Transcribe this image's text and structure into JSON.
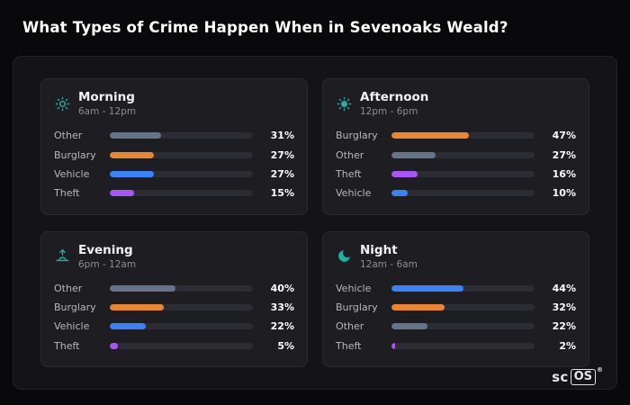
{
  "page": {
    "title": "What Types of Crime Happen When in Sevenoaks Weald?"
  },
  "colors": {
    "Other": "#64748b",
    "Burglary": "#e8872f",
    "Vehicle": "#3b82f6",
    "Theft": "#a855f7",
    "accent": "#20b2a0",
    "track": "#2c2c34",
    "panel": "#141418",
    "card": "#1d1d22",
    "background": "#09090b"
  },
  "layout": {
    "bar_scale": 1.15,
    "grid": "2x2",
    "legend": "none"
  },
  "logo": {
    "prefix": "sc",
    "box": "OS",
    "reg": "®"
  },
  "chart_data": [
    {
      "type": "bar",
      "orientation": "horizontal",
      "icon": "sun-icon",
      "title": "Morning",
      "subtitle": "6am - 12pm",
      "unit": "%",
      "xlim": [
        0,
        100
      ],
      "categories": [
        "Other",
        "Burglary",
        "Vehicle",
        "Theft"
      ],
      "values": [
        31,
        27,
        27,
        15
      ],
      "labels": [
        "31%",
        "27%",
        "27%",
        "15%"
      ]
    },
    {
      "type": "bar",
      "orientation": "horizontal",
      "icon": "sun-icon",
      "title": "Afternoon",
      "subtitle": "12pm - 6pm",
      "unit": "%",
      "xlim": [
        0,
        100
      ],
      "categories": [
        "Burglary",
        "Other",
        "Theft",
        "Vehicle"
      ],
      "values": [
        47,
        27,
        16,
        10
      ],
      "labels": [
        "47%",
        "27%",
        "16%",
        "10%"
      ]
    },
    {
      "type": "bar",
      "orientation": "horizontal",
      "icon": "sunset-icon",
      "title": "Evening",
      "subtitle": "6pm - 12am",
      "unit": "%",
      "xlim": [
        0,
        100
      ],
      "categories": [
        "Other",
        "Burglary",
        "Vehicle",
        "Theft"
      ],
      "values": [
        40,
        33,
        22,
        5
      ],
      "labels": [
        "40%",
        "33%",
        "22%",
        "5%"
      ]
    },
    {
      "type": "bar",
      "orientation": "horizontal",
      "icon": "moon-icon",
      "title": "Night",
      "subtitle": "12am - 6am",
      "unit": "%",
      "xlim": [
        0,
        100
      ],
      "categories": [
        "Vehicle",
        "Burglary",
        "Other",
        "Theft"
      ],
      "values": [
        44,
        32,
        22,
        2
      ],
      "labels": [
        "44%",
        "32%",
        "22%",
        "2%"
      ]
    }
  ]
}
